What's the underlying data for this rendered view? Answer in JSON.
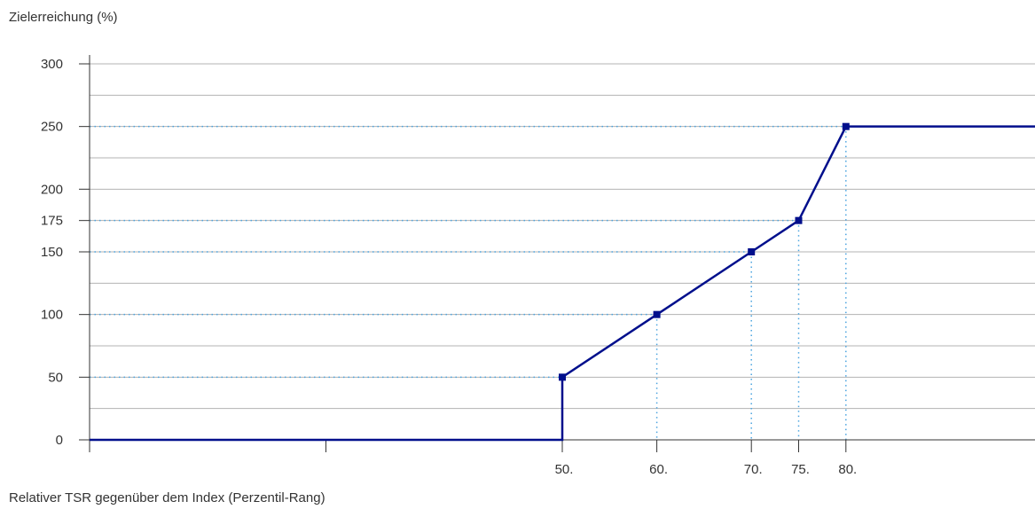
{
  "chart_data": {
    "type": "line",
    "title": "",
    "ylabel": "Zielerreichung (%)",
    "xlabel": "Relativer TSR gegenüber dem Index (Perzentil-Rang)",
    "ylim": [
      0,
      300
    ],
    "yticks": [
      {
        "value": 0,
        "label": "0"
      },
      {
        "value": 50,
        "label": "50"
      },
      {
        "value": 100,
        "label": "100"
      },
      {
        "value": 150,
        "label": "150"
      },
      {
        "value": 175,
        "label": "175"
      },
      {
        "value": 200,
        "label": "200"
      },
      {
        "value": 250,
        "label": "250"
      },
      {
        "value": 300,
        "label": "300"
      }
    ],
    "ygrid": [
      25,
      50,
      75,
      100,
      125,
      150,
      175,
      200,
      225,
      250,
      275,
      300
    ],
    "xlim": [
      0,
      100
    ],
    "xticks": [
      {
        "value": 0,
        "label": ""
      },
      {
        "value": 25,
        "label": ""
      },
      {
        "value": 50,
        "label": "50."
      },
      {
        "value": 60,
        "label": "60."
      },
      {
        "value": 70,
        "label": "70."
      },
      {
        "value": 75,
        "label": "75."
      },
      {
        "value": 80,
        "label": "80."
      }
    ],
    "series": [
      {
        "x": [
          0,
          50,
          50,
          60,
          70,
          75,
          80,
          100
        ],
        "y": [
          0,
          0,
          50,
          100,
          150,
          175,
          250,
          250
        ]
      }
    ],
    "markers": [
      {
        "x": 50,
        "y": 50
      },
      {
        "x": 60,
        "y": 100
      },
      {
        "x": 70,
        "y": 150
      },
      {
        "x": 75,
        "y": 175
      },
      {
        "x": 80,
        "y": 250
      }
    ],
    "grid": true,
    "colors": {
      "line": "#000f8c",
      "guide": "#4aa3df",
      "grid": "#b3b3b3",
      "axis": "#333333"
    }
  }
}
